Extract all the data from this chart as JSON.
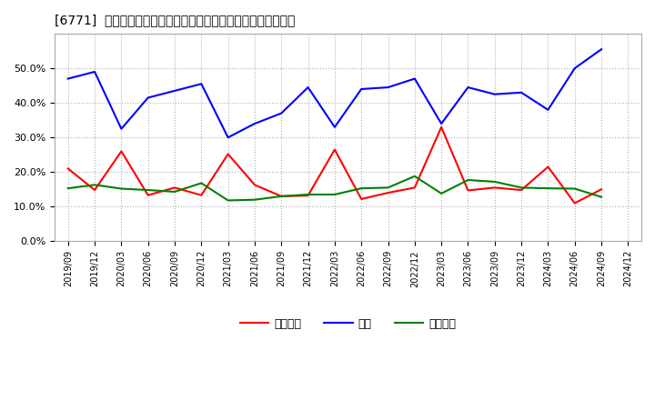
{
  "title": "[6771]  売上債権、在庫、買入債務の総資産に対する比率の推移",
  "x_labels": [
    "2019/09",
    "2019/12",
    "2020/03",
    "2020/06",
    "2020/09",
    "2020/12",
    "2021/03",
    "2021/06",
    "2021/09",
    "2021/12",
    "2022/03",
    "2022/06",
    "2022/09",
    "2022/12",
    "2023/03",
    "2023/06",
    "2023/09",
    "2023/12",
    "2024/03",
    "2024/06",
    "2024/09",
    "2024/12"
  ],
  "urikake": [
    0.21,
    0.148,
    0.26,
    0.133,
    0.155,
    0.133,
    0.252,
    0.163,
    0.13,
    0.132,
    0.265,
    0.122,
    0.14,
    0.155,
    0.33,
    0.147,
    0.155,
    0.148,
    0.215,
    0.11,
    0.15,
    null
  ],
  "zaiko": [
    0.47,
    0.49,
    0.325,
    0.415,
    0.435,
    0.455,
    0.3,
    0.34,
    0.37,
    0.445,
    0.33,
    0.44,
    0.445,
    0.47,
    0.34,
    0.445,
    0.425,
    0.43,
    0.38,
    0.5,
    0.555,
    null
  ],
  "kaiire": [
    0.153,
    0.163,
    0.152,
    0.148,
    0.143,
    0.168,
    0.118,
    0.12,
    0.13,
    0.135,
    0.135,
    0.153,
    0.155,
    0.188,
    0.138,
    0.177,
    0.172,
    0.155,
    0.153,
    0.152,
    0.128,
    null
  ],
  "urikake_color": "#ff0000",
  "zaiko_color": "#0000ff",
  "kaiire_color": "#008000",
  "background_color": "#ffffff",
  "grid_color": "#b0b0b0",
  "ylim": [
    0.0,
    0.6
  ],
  "yticks": [
    0.0,
    0.1,
    0.2,
    0.3,
    0.4,
    0.5
  ],
  "legend_urikake": "売上債権",
  "legend_zaiko": "在庫",
  "legend_kaiire": "買入債務"
}
